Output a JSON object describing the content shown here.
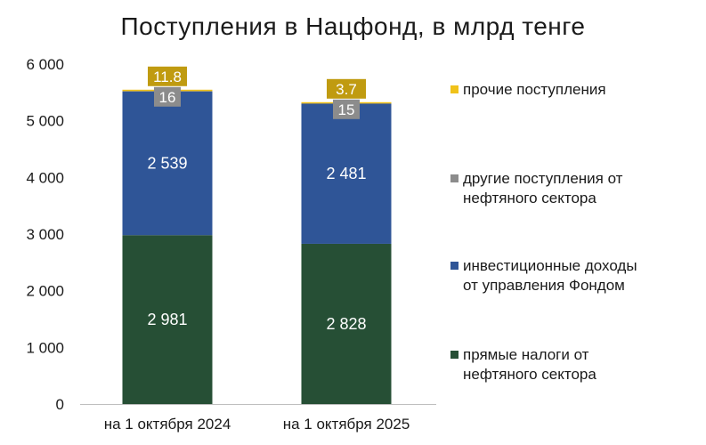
{
  "title": "Поступления в Нацфонд, в млрд тенге",
  "chart_data": {
    "type": "bar",
    "stacked": true,
    "title": "Поступления в Нацфонд, в млрд тенге",
    "categories": [
      "на 1 октября 2024",
      "на 1 октября 2025"
    ],
    "ylim": [
      0,
      6000
    ],
    "yticks": [
      0,
      1000,
      2000,
      3000,
      4000,
      5000,
      6000
    ],
    "ytick_labels": [
      "0",
      "1 000",
      "2 000",
      "3 000",
      "4 000",
      "5 000",
      "6 000"
    ],
    "grid": false,
    "legend_position": "right",
    "series": [
      {
        "name": "прямые налоги от нефтяного сектора",
        "legend_lines": [
          "прямые налоги от",
          "нефтяного сектора"
        ],
        "values": [
          2981,
          2828
        ],
        "labels": [
          "2 981",
          "2 828"
        ],
        "color": "#264f35",
        "label_style": "inside"
      },
      {
        "name": "инвестиционные доходы от управления Фондом",
        "legend_lines": [
          "инвестиционные доходы",
          "от управления Фондом"
        ],
        "values": [
          2539,
          2481
        ],
        "labels": [
          "2 539",
          "2 481"
        ],
        "color": "#2f5597",
        "label_style": "inside"
      },
      {
        "name": "другие поступления от нефтяного сектора",
        "legend_lines": [
          "другие поступления от",
          "нефтяного сектора"
        ],
        "values": [
          16,
          15
        ],
        "labels": [
          "16",
          "15"
        ],
        "color": "#8c8c8c",
        "label_style": "box"
      },
      {
        "name": "прочие поступления",
        "legend_lines": [
          "прочие поступления"
        ],
        "values": [
          11.8,
          3.7
        ],
        "labels": [
          "11.8",
          "3.7"
        ],
        "color": "#f0c21a",
        "label_color": "#c09b10",
        "label_style": "box"
      }
    ]
  }
}
